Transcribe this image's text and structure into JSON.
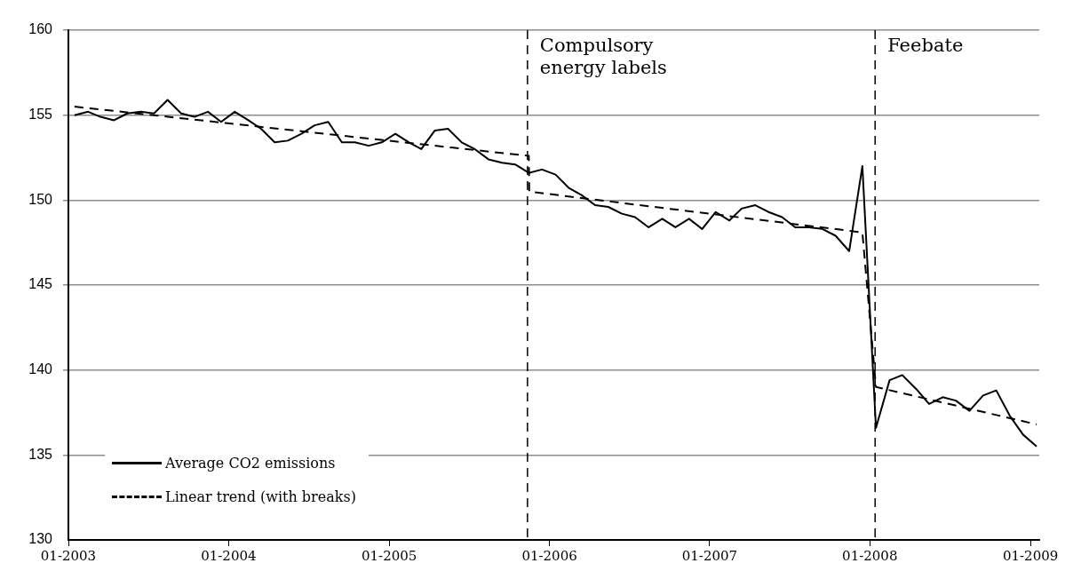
{
  "chart_data": {
    "type": "line",
    "x": [
      "2003-01-15",
      "2003-02-15",
      "2003-03-15",
      "2003-04-15",
      "2003-05-15",
      "2003-06-15",
      "2003-07-15",
      "2003-08-15",
      "2003-09-15",
      "2003-10-15",
      "2003-11-15",
      "2003-12-15",
      "2004-01-15",
      "2004-02-15",
      "2004-03-15",
      "2004-04-15",
      "2004-05-15",
      "2004-06-15",
      "2004-07-15",
      "2004-08-15",
      "2004-09-15",
      "2004-10-15",
      "2004-11-15",
      "2004-12-15",
      "2005-01-15",
      "2005-02-15",
      "2005-03-15",
      "2005-04-15",
      "2005-05-15",
      "2005-06-15",
      "2005-07-15",
      "2005-08-15",
      "2005-09-15",
      "2005-10-15",
      "2005-11-15",
      "2005-12-15",
      "2006-01-15",
      "2006-02-15",
      "2006-03-15",
      "2006-04-15",
      "2006-05-15",
      "2006-06-15",
      "2006-07-15",
      "2006-08-15",
      "2006-09-15",
      "2006-10-15",
      "2006-11-15",
      "2006-12-15",
      "2007-01-15",
      "2007-02-15",
      "2007-03-15",
      "2007-04-15",
      "2007-05-15",
      "2007-06-15",
      "2007-07-15",
      "2007-08-15",
      "2007-09-15",
      "2007-10-15",
      "2007-11-15",
      "2007-12-15",
      "2008-01-15",
      "2008-02-15",
      "2008-03-15",
      "2008-04-15",
      "2008-05-15",
      "2008-06-15",
      "2008-07-15",
      "2008-08-15",
      "2008-09-15",
      "2008-10-15",
      "2008-11-15",
      "2008-12-15",
      "2009-01-15"
    ],
    "series": [
      {
        "name": "Average CO2 emissions",
        "color": "#000000",
        "line_style": "solid",
        "values": [
          155.0,
          155.2,
          154.9,
          154.7,
          155.1,
          155.2,
          155.1,
          155.9,
          155.1,
          154.9,
          155.2,
          154.6,
          155.2,
          154.7,
          154.2,
          153.4,
          153.5,
          153.9,
          154.4,
          154.6,
          153.4,
          153.4,
          153.2,
          153.4,
          153.9,
          153.4,
          153.0,
          154.1,
          154.2,
          153.4,
          153.0,
          152.4,
          152.2,
          152.1,
          151.6,
          151.8,
          151.5,
          150.7,
          150.3,
          149.7,
          149.6,
          149.2,
          149.0,
          148.4,
          148.9,
          148.4,
          148.9,
          148.3,
          149.3,
          148.8,
          149.5,
          149.7,
          149.3,
          149.0,
          148.4,
          148.4,
          148.3,
          147.9,
          147.0,
          152.0,
          136.6,
          139.4,
          139.7,
          138.9,
          138.0,
          138.4,
          138.2,
          137.6,
          138.5,
          138.8,
          137.3,
          136.2,
          135.5
        ]
      },
      {
        "name": "Linear trend (with breaks)",
        "color": "#000000",
        "line_style": "dashed",
        "x": [
          "2003-01-15",
          "2005-11-15",
          "2005-11-16",
          "2007-12-15",
          "2008-01-15",
          "2009-01-15"
        ],
        "values": [
          155.5,
          152.6,
          150.5,
          148.1,
          139.0,
          136.8
        ]
      }
    ],
    "xlim": [
      "2003-01-01",
      "2009-01-21"
    ],
    "xticks": [
      {
        "value": "2003-01-01",
        "label": "01-2003"
      },
      {
        "value": "2004-01-01",
        "label": "01-2004"
      },
      {
        "value": "2005-01-01",
        "label": "01-2005"
      },
      {
        "value": "2006-01-01",
        "label": "01-2006"
      },
      {
        "value": "2007-01-01",
        "label": "01-2007"
      },
      {
        "value": "2008-01-01",
        "label": "01-2008"
      },
      {
        "value": "2009-01-01",
        "label": "01-2009"
      }
    ],
    "ylim": [
      130,
      160
    ],
    "yticks": [
      130,
      135,
      140,
      145,
      150,
      155,
      160
    ],
    "ref_lines": [
      {
        "axis": "x",
        "value": "2005-11-12",
        "label": "Compulsory energy labels",
        "color": "#000000",
        "line_style": "dashed"
      },
      {
        "axis": "x",
        "value": "2008-01-13",
        "label": "Feebate",
        "color": "#000000",
        "line_style": "dashed"
      }
    ],
    "grid": "y",
    "legend": "bottom left",
    "marker": "none"
  }
}
